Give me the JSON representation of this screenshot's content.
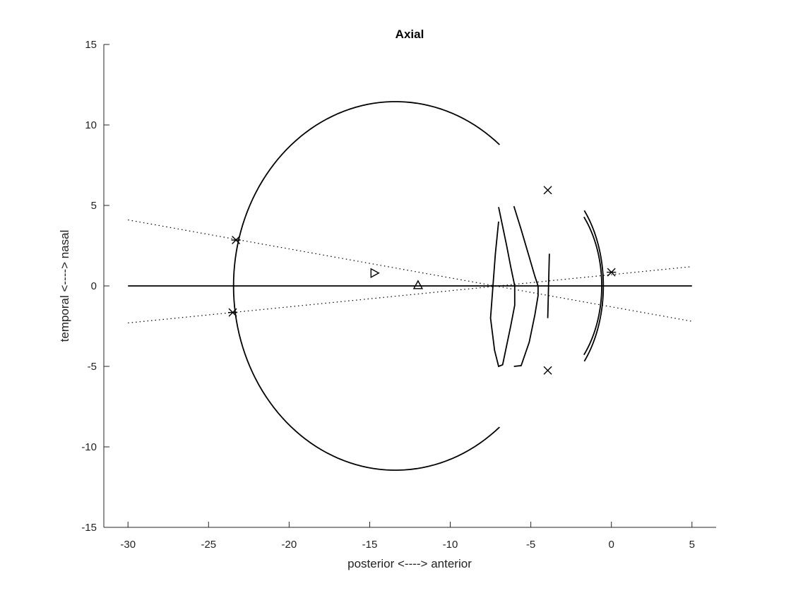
{
  "chart_data": {
    "type": "line",
    "title": "Axial",
    "xlabel": "posterior <----> anterior",
    "ylabel": "temporal <----> nasal",
    "xlim": [
      -31.5,
      6.5
    ],
    "ylim": [
      -15,
      15
    ],
    "xticks": [
      -30,
      -25,
      -20,
      -15,
      -10,
      -5,
      0,
      5
    ],
    "yticks": [
      -15,
      -10,
      -5,
      0,
      5,
      10,
      15
    ],
    "grid": false,
    "series": [
      {
        "style": "solid",
        "shape": "ellipse-arc",
        "center": [
          -13.4,
          0
        ],
        "radii": [
          10.05,
          11.45
        ],
        "theta_deg": [
          50,
          310
        ]
      },
      {
        "style": "solid",
        "shape": "ellipse-arc",
        "center": [
          -5.1,
          0
        ],
        "radii": [
          4.6,
          7.0
        ],
        "theta_deg": [
          -42,
          42
        ]
      },
      {
        "style": "solid",
        "shape": "ellipse-arc",
        "center": [
          -4.9,
          0
        ],
        "radii": [
          4.3,
          6.4
        ],
        "theta_deg": [
          -42,
          42
        ]
      },
      {
        "style": "solid",
        "x": [
          -7.0,
          -6.75,
          -6.5,
          -6.25,
          -6.0,
          -6.0,
          -6.25,
          -6.5,
          -6.75,
          -7.0,
          -7.25,
          -7.5,
          -7.35,
          -7.2,
          -7.0
        ],
        "y": [
          4.9,
          3.7,
          2.5,
          1.2,
          0.0,
          -1.2,
          -2.5,
          -3.7,
          -4.9,
          -5.0,
          -4.0,
          -2.0,
          0.0,
          2.0,
          4.0
        ]
      },
      {
        "style": "solid",
        "x": [
          -6.05,
          -5.6,
          -5.1,
          -4.75,
          -4.55,
          -4.55,
          -4.75,
          -5.1,
          -5.6,
          -6.05
        ],
        "y": [
          4.95,
          3.5,
          1.8,
          0.6,
          0.0,
          -0.6,
          -1.8,
          -3.5,
          -4.95,
          -5.0
        ]
      },
      {
        "style": "solid",
        "x": [
          -3.85,
          -3.95
        ],
        "y": [
          2.0,
          -2.0
        ]
      },
      {
        "style": "solid",
        "x": [
          -30,
          5
        ],
        "y": [
          0,
          0
        ]
      },
      {
        "style": "dotted",
        "x": [
          -30,
          5
        ],
        "y": [
          4.1,
          -2.2
        ]
      },
      {
        "style": "dotted",
        "x": [
          -30,
          5
        ],
        "y": [
          -2.3,
          1.2
        ]
      }
    ],
    "markers": [
      {
        "symbol": "asterisk",
        "x": -23.3,
        "y": 2.85
      },
      {
        "symbol": "asterisk",
        "x": -23.5,
        "y": -1.65
      },
      {
        "symbol": "asterisk",
        "x": 0.0,
        "y": 0.85
      },
      {
        "symbol": "cross",
        "x": -3.95,
        "y": 5.95
      },
      {
        "symbol": "cross",
        "x": -3.95,
        "y": -5.25
      },
      {
        "symbol": "triangle-right",
        "x": -14.7,
        "y": 0.8
      },
      {
        "symbol": "triangle-up",
        "x": -12.0,
        "y": 0.05
      }
    ]
  }
}
